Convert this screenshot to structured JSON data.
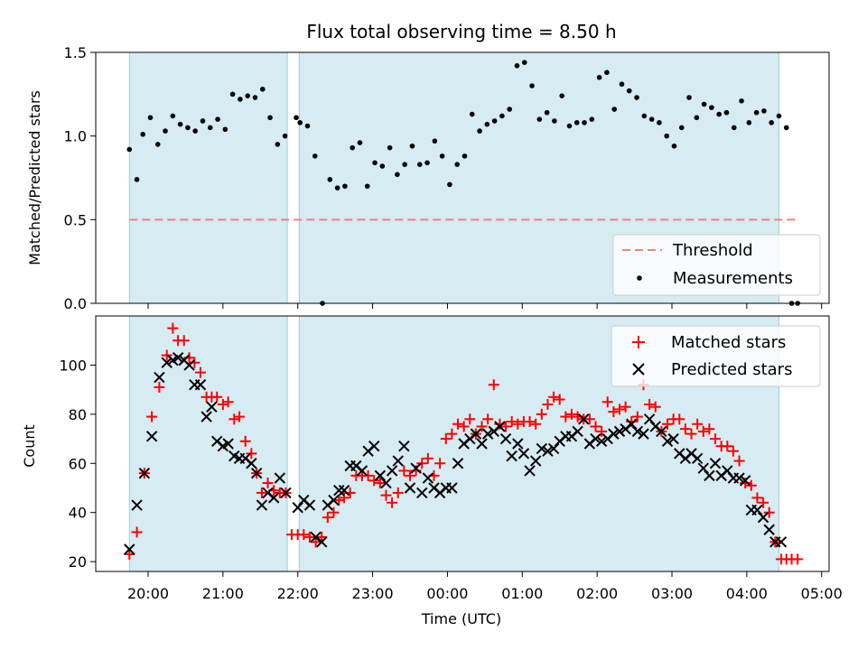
{
  "chart_data": [
    {
      "type": "scatter",
      "title": "Flux total observing time = 8.50 h",
      "ylabel": "Matched/Predicted stars",
      "xlabel": "",
      "x_unit": "hours (UTC, continuing past midnight)",
      "xlim": [
        19.3,
        29.1
      ],
      "ylim": [
        0,
        1.5
      ],
      "yticks": [
        0.0,
        0.5,
        1.0,
        1.5
      ],
      "ytick_labels": [
        "0.0",
        "0.5",
        "1.0",
        "1.5"
      ],
      "shaded_intervals": [
        [
          19.75,
          21.86
        ],
        [
          22.02,
          28.43
        ]
      ],
      "threshold": {
        "name": "Threshold",
        "y": 0.5,
        "x_range": [
          19.75,
          28.68
        ],
        "color": "#f08080"
      },
      "legend": {
        "position": "lower right",
        "entries": [
          "Threshold",
          "Measurements"
        ]
      },
      "series": [
        {
          "name": "Measurements",
          "color": "#000000",
          "marker": "dot",
          "x": [
            19.75,
            19.85,
            19.93,
            20.03,
            20.13,
            20.23,
            20.33,
            20.43,
            20.53,
            20.63,
            20.73,
            20.83,
            20.93,
            21.03,
            21.13,
            21.23,
            21.33,
            21.43,
            21.53,
            21.63,
            21.73,
            21.83,
            21.98,
            22.03,
            22.13,
            22.23,
            22.33,
            22.43,
            22.53,
            22.63,
            22.73,
            22.83,
            22.93,
            23.03,
            23.13,
            23.23,
            23.33,
            23.43,
            23.53,
            23.63,
            23.73,
            23.83,
            23.93,
            24.03,
            24.13,
            24.23,
            24.33,
            24.43,
            24.53,
            24.63,
            24.73,
            24.83,
            24.93,
            25.03,
            25.13,
            25.23,
            25.33,
            25.43,
            25.53,
            25.63,
            25.73,
            25.83,
            25.93,
            26.03,
            26.13,
            26.23,
            26.33,
            26.43,
            26.53,
            26.63,
            26.73,
            26.83,
            26.93,
            27.03,
            27.13,
            27.23,
            27.33,
            27.43,
            27.53,
            27.63,
            27.73,
            27.83,
            27.93,
            28.03,
            28.13,
            28.23,
            28.33,
            28.43,
            28.53,
            28.6,
            28.68
          ],
          "y": [
            0.92,
            0.74,
            1.01,
            1.11,
            0.95,
            1.03,
            1.12,
            1.07,
            1.05,
            1.03,
            1.09,
            1.05,
            1.1,
            1.04,
            1.25,
            1.22,
            1.24,
            1.23,
            1.28,
            1.11,
            0.95,
            1.0,
            1.11,
            1.08,
            1.06,
            0.88,
            0.0,
            0.74,
            0.69,
            0.7,
            0.93,
            0.96,
            0.7,
            0.84,
            0.82,
            0.93,
            0.77,
            0.83,
            0.94,
            0.83,
            0.84,
            0.97,
            0.88,
            0.71,
            0.83,
            0.88,
            1.13,
            1.03,
            1.07,
            1.09,
            1.12,
            1.16,
            1.42,
            1.44,
            1.3,
            1.1,
            1.14,
            1.09,
            1.24,
            1.06,
            1.08,
            1.08,
            1.1,
            1.35,
            1.38,
            1.16,
            1.31,
            1.27,
            1.23,
            1.12,
            1.1,
            1.08,
            1.0,
            0.94,
            1.05,
            1.23,
            1.11,
            1.19,
            1.17,
            1.13,
            1.14,
            1.05,
            1.21,
            1.08,
            1.14,
            1.15,
            1.08,
            1.12,
            1.05,
            0.0,
            0.0
          ]
        }
      ]
    },
    {
      "type": "scatter",
      "title": "",
      "ylabel": "Count",
      "xlabel": "Time (UTC)",
      "x_unit": "hours (UTC, continuing past midnight)",
      "xlim": [
        19.3,
        29.1
      ],
      "ylim": [
        16,
        120
      ],
      "xticks": [
        20,
        21,
        22,
        23,
        24,
        25,
        26,
        27,
        28,
        29
      ],
      "xtick_labels": [
        "20:00",
        "21:00",
        "22:00",
        "23:00",
        "00:00",
        "01:00",
        "02:00",
        "03:00",
        "04:00",
        "05:00"
      ],
      "yticks": [
        20,
        40,
        60,
        80,
        100
      ],
      "ytick_labels": [
        "20",
        "40",
        "60",
        "80",
        "100"
      ],
      "shaded_intervals": [
        [
          19.75,
          21.86
        ],
        [
          22.02,
          28.43
        ]
      ],
      "legend": {
        "position": "upper right",
        "entries": [
          "Matched stars",
          "Predicted stars"
        ]
      },
      "series": [
        {
          "name": "Matched stars",
          "color": "#ff0000",
          "marker": "plus",
          "x": [
            19.75,
            19.85,
            19.95,
            20.05,
            20.15,
            20.25,
            20.33,
            20.4,
            20.48,
            20.55,
            20.62,
            20.7,
            20.78,
            20.85,
            20.92,
            21.0,
            21.07,
            21.15,
            21.22,
            21.3,
            21.38,
            21.45,
            21.52,
            21.6,
            21.68,
            21.76,
            21.84,
            21.92,
            22.0,
            22.08,
            22.16,
            22.24,
            22.32,
            22.4,
            22.48,
            22.55,
            22.62,
            22.7,
            22.78,
            22.86,
            22.94,
            23.02,
            23.1,
            23.18,
            23.26,
            23.34,
            23.42,
            23.5,
            23.58,
            23.66,
            23.74,
            23.82,
            23.9,
            23.98,
            24.06,
            24.14,
            24.22,
            24.3,
            24.38,
            24.46,
            24.54,
            24.62,
            24.7,
            24.78,
            24.86,
            24.94,
            25.02,
            25.1,
            25.18,
            25.26,
            25.34,
            25.42,
            25.5,
            25.58,
            25.66,
            25.74,
            25.82,
            25.9,
            25.98,
            26.06,
            26.14,
            26.22,
            26.3,
            26.38,
            26.46,
            26.54,
            26.62,
            26.7,
            26.78,
            26.86,
            26.94,
            27.02,
            27.1,
            27.18,
            27.26,
            27.34,
            27.42,
            27.5,
            27.58,
            27.66,
            27.74,
            27.82,
            27.9,
            27.98,
            28.06,
            28.14,
            28.22,
            28.3,
            28.38,
            28.46,
            28.53,
            28.6,
            28.68
          ],
          "y": [
            23,
            32,
            56,
            79,
            91,
            104,
            115,
            110,
            110,
            103,
            101,
            97,
            87,
            87,
            87,
            84,
            85,
            78,
            79,
            69,
            64,
            56,
            48,
            52,
            49,
            48,
            48,
            31,
            31,
            31,
            30,
            28,
            30,
            38,
            40,
            45,
            46,
            48,
            55,
            55,
            55,
            53,
            52,
            47,
            44,
            48,
            57,
            55,
            57,
            60,
            62,
            55,
            60,
            70,
            72,
            76,
            75,
            78,
            72,
            75,
            78,
            92,
            76,
            75,
            77,
            76,
            77,
            77,
            76,
            80,
            84,
            87,
            86,
            79,
            80,
            79,
            78,
            78,
            75,
            73,
            85,
            81,
            82,
            83,
            77,
            79,
            92,
            84,
            83,
            73,
            76,
            78,
            78,
            74,
            72,
            76,
            73,
            74,
            70,
            67,
            67,
            65,
            61,
            52,
            51,
            46,
            44,
            40,
            28,
            21,
            21,
            21,
            21
          ],
          "x_note": "bottom row (y=21) at end: 28.43,28.50,28.58,28.65,28.72"
        },
        {
          "name": "Predicted stars",
          "color": "#000000",
          "marker": "x",
          "x": [
            19.75,
            19.85,
            19.95,
            20.05,
            20.15,
            20.25,
            20.33,
            20.4,
            20.48,
            20.55,
            20.62,
            20.7,
            20.78,
            20.85,
            20.92,
            21.0,
            21.07,
            21.15,
            21.22,
            21.3,
            21.38,
            21.45,
            21.52,
            21.6,
            21.68,
            21.76,
            21.84,
            22.0,
            22.08,
            22.16,
            22.24,
            22.32,
            22.4,
            22.48,
            22.55,
            22.62,
            22.7,
            22.78,
            22.86,
            22.94,
            23.02,
            23.1,
            23.18,
            23.26,
            23.34,
            23.42,
            23.5,
            23.58,
            23.66,
            23.74,
            23.82,
            23.9,
            23.98,
            24.06,
            24.14,
            24.22,
            24.3,
            24.38,
            24.46,
            24.54,
            24.62,
            24.7,
            24.78,
            24.86,
            24.94,
            25.02,
            25.1,
            25.18,
            25.26,
            25.34,
            25.42,
            25.5,
            25.58,
            25.66,
            25.74,
            25.82,
            25.9,
            25.98,
            26.06,
            26.14,
            26.22,
            26.3,
            26.38,
            26.46,
            26.54,
            26.62,
            26.7,
            26.78,
            26.86,
            26.94,
            27.02,
            27.1,
            27.18,
            27.26,
            27.34,
            27.42,
            27.5,
            27.58,
            27.66,
            27.74,
            27.82,
            27.9,
            27.98,
            28.06,
            28.14,
            28.22,
            28.3,
            28.38,
            28.46
          ],
          "y": [
            25,
            43,
            56,
            71,
            95,
            101,
            102,
            103,
            102,
            100,
            92,
            92,
            79,
            83,
            69,
            67,
            68,
            63,
            62,
            62,
            60,
            56,
            43,
            48,
            46,
            54,
            48,
            42,
            45,
            43,
            30,
            28,
            43,
            45,
            49,
            49,
            59,
            59,
            57,
            65,
            67,
            55,
            52,
            57,
            61,
            67,
            50,
            58,
            48,
            54,
            50,
            48,
            50,
            50,
            60,
            68,
            70,
            72,
            68,
            72,
            73,
            75,
            70,
            63,
            68,
            64,
            57,
            61,
            66,
            65,
            66,
            69,
            71,
            71,
            73,
            78,
            68,
            70,
            69,
            70,
            72,
            73,
            74,
            76,
            73,
            72,
            78,
            75,
            73,
            69,
            70,
            64,
            62,
            64,
            62,
            58,
            55,
            60,
            55,
            57,
            54,
            54,
            53,
            41,
            41,
            38,
            33,
            28,
            28
          ],
          "x_note": "approximate readings"
        }
      ]
    }
  ]
}
